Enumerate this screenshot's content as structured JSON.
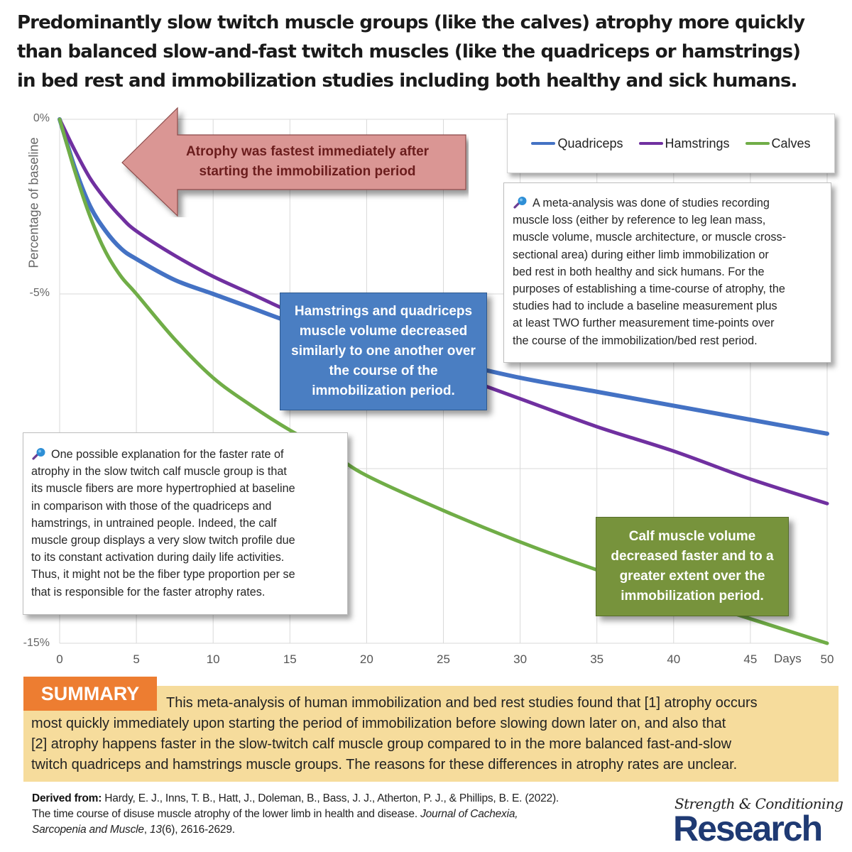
{
  "title": {
    "lines": [
      "Predominantly slow twitch muscle groups (like the calves) atrophy more quickly",
      "than balanced slow-and-fast twitch muscles (like the quadriceps or hamstrings)",
      "in bed rest and immobilization studies including both healthy and sick humans."
    ]
  },
  "chart_data": {
    "type": "line",
    "title": "Predominantly slow twitch muscle groups (like the calves) atrophy more quickly than balanced slow-and-fast twitch muscles (like the quadriceps or hamstrings) in bed rest and immobilization studies including both healthy and sick humans.",
    "xlabel": "Days",
    "ylabel": "Percentage of baseline",
    "x_ticks": [
      0,
      5,
      10,
      15,
      20,
      25,
      30,
      35,
      40,
      45,
      50
    ],
    "y_tick_labels": [
      "0%",
      "-5%",
      "",
      "-15%"
    ],
    "y_ticks": [
      0,
      -5,
      -10,
      -15
    ],
    "xlim": [
      0,
      50
    ],
    "ylim": [
      -15,
      0
    ],
    "grid": true,
    "legend_position": "top-right",
    "x": [
      0,
      1,
      2,
      3,
      4,
      5,
      7.5,
      10,
      12.5,
      15,
      17.5,
      20,
      25,
      30,
      35,
      40,
      45,
      50
    ],
    "series": [
      {
        "name": "Quadriceps",
        "color": "#4472c4",
        "values": [
          0,
          -1.4,
          -2.5,
          -3.2,
          -3.7,
          -4.0,
          -4.6,
          -5.0,
          -5.4,
          -5.8,
          -6.1,
          -6.4,
          -6.9,
          -7.4,
          -7.8,
          -8.2,
          -8.6,
          -9.0
        ]
      },
      {
        "name": "Hamstrings",
        "color": "#7030a0",
        "values": [
          0,
          -0.9,
          -1.7,
          -2.3,
          -2.8,
          -3.2,
          -3.9,
          -4.5,
          -5.0,
          -5.5,
          -5.9,
          -6.4,
          -7.2,
          -8.0,
          -8.8,
          -9.5,
          -10.3,
          -11.0
        ]
      },
      {
        "name": "Calves",
        "color": "#70ad47",
        "values": [
          0,
          -1.5,
          -2.8,
          -3.8,
          -4.5,
          -5.0,
          -6.3,
          -7.4,
          -8.2,
          -8.9,
          -9.5,
          -10.2,
          -11.2,
          -12.1,
          -12.9,
          -13.6,
          -14.3,
          -15.0
        ]
      }
    ],
    "annotations": [
      "Atrophy was fastest immediately after starting the immobilization period",
      "Hamstrings and quadriceps muscle volume decreased similarly to one another over the course of the immobilization period.",
      "Calf muscle volume decreased faster and to a greater extent over the immobilization period."
    ]
  },
  "axes": {
    "ylabel": "Percentage of baseline",
    "xlabel": "Days",
    "y_tick_labels": [
      {
        "label": "0%",
        "value": 0
      },
      {
        "label": "-5%",
        "value": -5
      },
      {
        "label": "-15%",
        "value": -15
      }
    ],
    "x_tick_labels": [
      "0",
      "5",
      "10",
      "15",
      "20",
      "25",
      "30",
      "35",
      "40",
      "45",
      "50"
    ]
  },
  "legend": {
    "items": [
      {
        "label": "Quadriceps",
        "color": "#4472c4"
      },
      {
        "label": "Hamstrings",
        "color": "#7030a0"
      },
      {
        "label": "Calves",
        "color": "#70ad47"
      }
    ]
  },
  "callouts": {
    "arrow": {
      "text_line1": "Atrophy was fastest immediately after",
      "text_line2": "starting the immobilization period",
      "fill": "#da9694",
      "text_color": "#6b1d1d"
    },
    "blue_box": {
      "text": "Hamstrings and quadriceps muscle volume decreased similarly to one another over the course of the immobilization period.",
      "fill": "#4a7ec2"
    },
    "green_box": {
      "text": "Calf muscle volume decreased faster and to a greater extent over the immobilization period.",
      "fill": "#77933c"
    }
  },
  "notes": {
    "methods": {
      "icon": "magnifier-icon",
      "lines": [
        "A meta-analysis was done of studies recording",
        "muscle loss (either by reference to leg lean mass,",
        "muscle volume, muscle architecture, or muscle cross-",
        "sectional area) during either limb immobilization or",
        "bed rest in both healthy and sick humans. For the",
        "purposes of establishing a time-course of atrophy, the",
        "studies had to include a baseline measurement plus",
        "at least TWO further measurement time-points over",
        "the course of the immobilization/bed rest period."
      ]
    },
    "explanation": {
      "icon": "magnifier-icon",
      "lines": [
        "One possible explanation for the faster rate of",
        "atrophy in the slow twitch calf muscle group is that",
        "its muscle fibers are more hypertrophied at baseline",
        "in comparison with those of the quadriceps and",
        "hamstrings, in untrained people. Indeed, the calf",
        "muscle group displays a very slow twitch profile due",
        "to its constant activation during daily life activities.",
        "Thus, it might not be the fiber type proportion per se",
        "that is responsible for the faster atrophy rates."
      ]
    }
  },
  "summary": {
    "badge": "SUMMARY",
    "badge_color": "#ed7d31",
    "background": "#f6dc9c",
    "lines": [
      "This meta-analysis of human immobilization and bed rest studies found that [1] atrophy occurs",
      "most quickly immediately upon starting the period of immobilization before slowing down later on, and also that",
      "[2] atrophy happens faster in the slow-twitch calf muscle group compared to in the more balanced fast-and-slow",
      "twitch quadriceps and hamstrings muscle groups. The reasons for these differences in atrophy rates are unclear."
    ]
  },
  "citation": {
    "label": "Derived from:",
    "authors": "Hardy, E. J., Inns, T. B., Hatt, J., Doleman, B., Bass, J. J., Atherton, P. J., & Phillips, B. E. (2022).",
    "title": "The time course of disuse muscle atrophy of the lower limb in health and disease.",
    "journal_part1": "Journal of Cachexia,",
    "journal_part2": "Sarcopenia and Muscle",
    "volume": "13",
    "issue_pages": "(6), 2616-2629."
  },
  "logo": {
    "script_text": "Strength & Conditioning",
    "main_text": "Research",
    "color": "#1f3a73"
  }
}
